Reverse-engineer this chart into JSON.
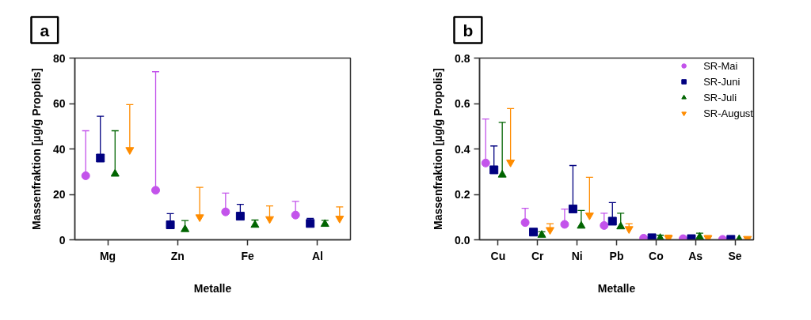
{
  "chart_data": [
    {
      "type": "scatter",
      "title": "a",
      "xlabel": "Metalle",
      "ylabel": "Massenfraktion [µg/g Propolis]",
      "categories": [
        "Mg",
        "Zn",
        "Fe",
        "Al"
      ],
      "ylim": [
        0,
        80
      ],
      "yticks": [
        0,
        20,
        40,
        60,
        80
      ],
      "series": [
        {
          "color": "#c353eb",
          "marker": "circle",
          "values": [
            28.2,
            21.8,
            12.3,
            10.9
          ],
          "errors": [
            [
              28.2,
              48.0
            ],
            [
              21.8,
              74.0
            ],
            [
              12.3,
              20.6
            ],
            [
              10.9,
              16.9
            ]
          ]
        },
        {
          "color": "#000080",
          "marker": "square",
          "values": [
            36.0,
            6.6,
            10.4,
            7.2
          ],
          "errors": [
            [
              36.0,
              54.4
            ],
            [
              6.6,
              11.5
            ],
            [
              10.4,
              15.6
            ],
            [
              7.2,
              9.4
            ]
          ]
        },
        {
          "color": "#006400",
          "marker": "triangle",
          "values": [
            29.0,
            4.6,
            6.5,
            6.9
          ],
          "errors": [
            [
              29.0,
              48.0
            ],
            [
              4.6,
              8.5
            ],
            [
              6.5,
              8.7
            ],
            [
              6.9,
              8.6
            ]
          ]
        },
        {
          "color": "#ff8c00",
          "marker": "triangle",
          "values": [
            39.6,
            10.0,
            9.2,
            9.4
          ],
          "errors": [
            [
              39.6,
              59.5
            ],
            [
              10.0,
              23.1
            ],
            [
              9.2,
              14.9
            ],
            [
              9.4,
              14.5
            ]
          ]
        }
      ]
    },
    {
      "type": "scatter",
      "title": "b",
      "xlabel": "Metalle",
      "ylabel": "Massenfraktion [µg/g Propolis]",
      "categories": [
        "Cu",
        "Cr",
        "Ni",
        "Pb",
        "Co",
        "As",
        "Se"
      ],
      "ylim": [
        0,
        0.8
      ],
      "yticks": [
        {
          "value": 0,
          "label": "0.0"
        },
        0.2,
        0.4,
        0.6,
        0.8
      ],
      "legend": "top right",
      "series": [
        {
          "name": "SR-Mai",
          "color": "#c353eb",
          "marker": "circle",
          "values": [
            0.338,
            0.076,
            0.068,
            0.063,
            0.007,
            0.005,
            0.002
          ],
          "errors": [
            [
              0.338,
              0.532
            ],
            [
              0.076,
              0.139
            ],
            [
              0.068,
              0.135
            ],
            [
              0.063,
              0.117
            ],
            null,
            null,
            null
          ]
        },
        {
          "name": "SR-Juni",
          "color": "#000080",
          "marker": "square",
          "values": [
            0.308,
            0.034,
            0.136,
            0.082,
            0.009,
            0.005,
            0.002
          ],
          "errors": [
            [
              0.308,
              0.413
            ],
            null,
            [
              0.136,
              0.327
            ],
            [
              0.082,
              0.164
            ],
            null,
            null,
            null
          ]
        },
        {
          "name": "SR-Juli",
          "color": "#006400",
          "marker": "triangle",
          "values": [
            0.286,
            0.021,
            0.061,
            0.058,
            0.007,
            0.012,
            0.002
          ],
          "errors": [
            [
              0.286,
              0.517
            ],
            [
              0.021,
              0.035
            ],
            [
              0.061,
              0.129
            ],
            [
              0.058,
              0.117
            ],
            [
              0.007,
              0.02
            ],
            [
              0.012,
              0.029
            ],
            null
          ]
        },
        {
          "name": "SR-August",
          "color": "#ff8c00",
          "marker": "triangle",
          "values": [
            0.341,
            0.044,
            0.108,
            0.048,
            0.008,
            0.008,
            0.005
          ],
          "errors": [
            [
              0.341,
              0.578
            ],
            [
              0.044,
              0.071
            ],
            [
              0.108,
              0.275
            ],
            [
              0.048,
              0.071
            ],
            [
              0.008,
              0.02
            ],
            [
              0.008,
              0.019
            ],
            null
          ]
        }
      ]
    }
  ]
}
